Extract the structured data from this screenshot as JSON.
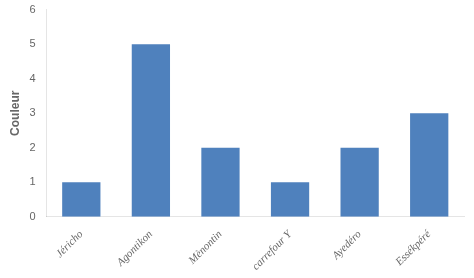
{
  "chart_data": {
    "type": "bar",
    "categories": [
      "Jéricho",
      "Agontikon",
      "Mènontin",
      "carrefour Y",
      "Ayedéro",
      "Essékpéré"
    ],
    "values": [
      1,
      5,
      2,
      1,
      2,
      3
    ],
    "color": "#4f81bd",
    "ylabel": "Couleur",
    "ylim": [
      0,
      6
    ],
    "yticks": [
      0,
      1,
      2,
      3,
      4,
      5,
      6
    ],
    "grid": false
  }
}
